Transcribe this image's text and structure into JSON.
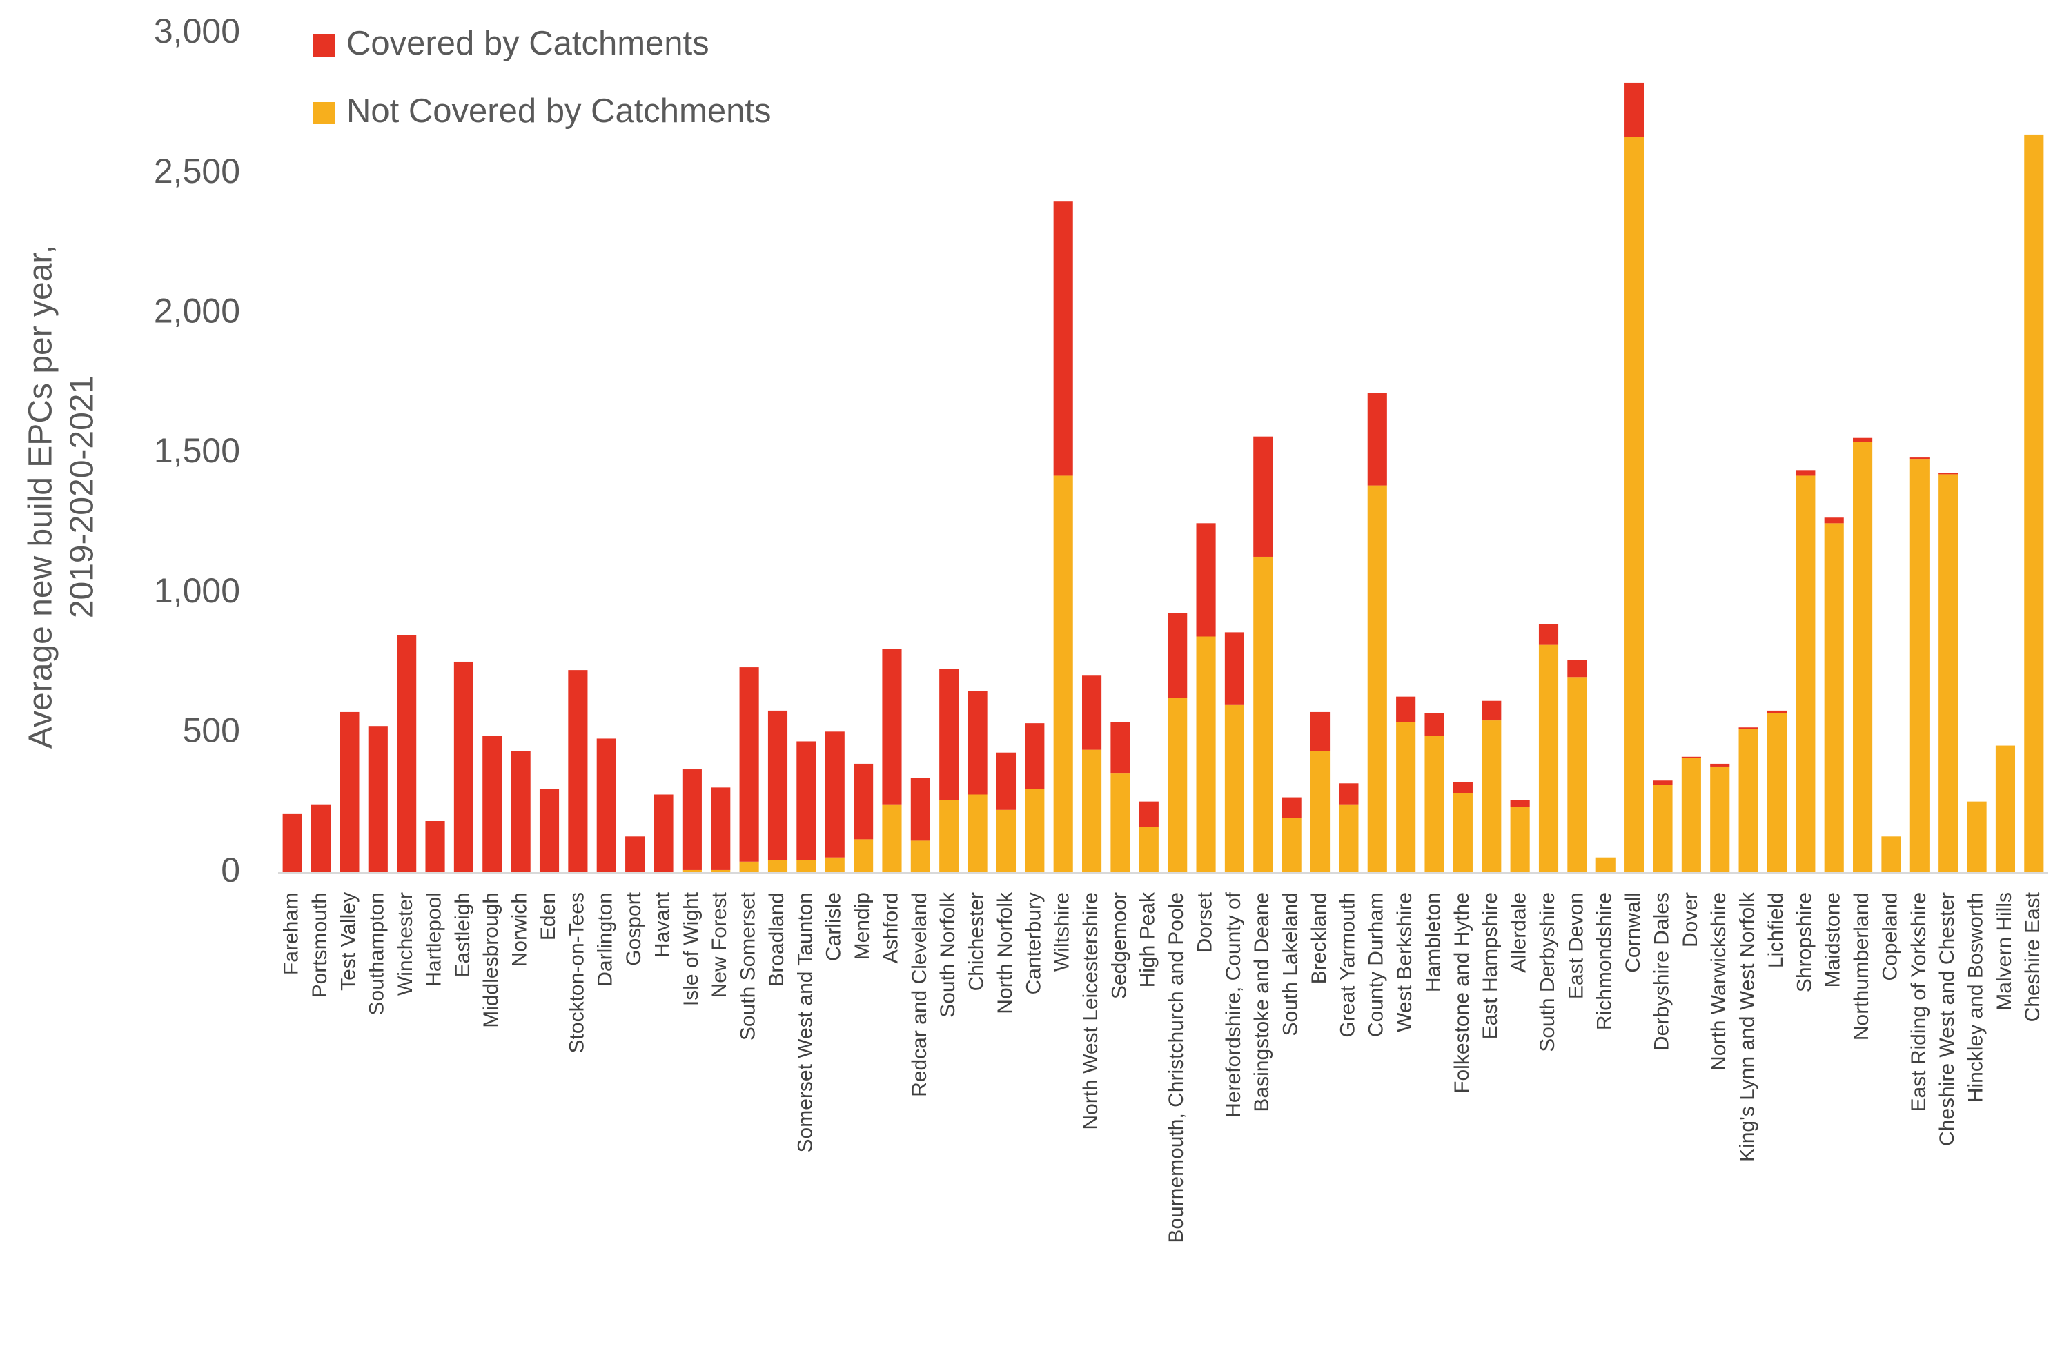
{
  "chart_data": {
    "type": "bar",
    "stacked": true,
    "title": "",
    "ylabel_lines": [
      "Average new build EPCs per year,",
      "2019-2020-2021"
    ],
    "xlabel": "",
    "ylim": [
      0,
      3000
    ],
    "yticks": [
      0,
      500,
      1000,
      1500,
      2000,
      2500,
      3000
    ],
    "ytick_labels": [
      "0",
      "500",
      "1,000",
      "1,500",
      "2,000",
      "2,500",
      "3,000"
    ],
    "grid": false,
    "legend_position": "top-left",
    "categories": [
      "Fareham",
      "Portsmouth",
      "Test Valley",
      "Southampton",
      "Winchester",
      "Hartlepool",
      "Eastleigh",
      "Middlesbrough",
      "Norwich",
      "Eden",
      "Stockton-on-Tees",
      "Darlington",
      "Gosport",
      "Havant",
      "Isle of Wight",
      "New Forest",
      "South Somerset",
      "Broadland",
      "Somerset West and Taunton",
      "Carlisle",
      "Mendip",
      "Ashford",
      "Redcar and Cleveland",
      "South Norfolk",
      "Chichester",
      "North Norfolk",
      "Canterbury",
      "Wiltshire",
      "North West Leicestershire",
      "Sedgemoor",
      "High Peak",
      "Bournemouth, Christchurch and Poole",
      "Dorset",
      "Herefordshire, County of",
      "Basingstoke and Deane",
      "South Lakeland",
      "Breckland",
      "Great Yarmouth",
      "County Durham",
      "West Berkshire",
      "Hambleton",
      "Folkestone and Hythe",
      "East Hampshire",
      "Allerdale",
      "South Derbyshire",
      "East Devon",
      "Richmondshire",
      "Cornwall",
      "Derbyshire Dales",
      "Dover",
      "North Warwickshire",
      "King's Lynn and West Norfolk",
      "Lichfield",
      "Shropshire",
      "Maidstone",
      "Northumberland",
      "Copeland",
      "East Riding of Yorkshire",
      "Cheshire West and Chester",
      "Hinckley and Bosworth",
      "Malvern Hills",
      "Cheshire East"
    ],
    "series": [
      {
        "name": "Not Covered by Catchments",
        "color": "#F7AF1D",
        "values": [
          0,
          0,
          0,
          0,
          0,
          0,
          0,
          0,
          0,
          0,
          0,
          0,
          0,
          0,
          10,
          10,
          40,
          45,
          45,
          55,
          120,
          245,
          115,
          260,
          280,
          225,
          300,
          1420,
          440,
          355,
          165,
          625,
          845,
          600,
          1130,
          195,
          435,
          245,
          1385,
          540,
          490,
          285,
          545,
          235,
          815,
          700,
          55,
          2630,
          315,
          410,
          380,
          515,
          570,
          1420,
          1250,
          1540,
          130,
          1480,
          1425,
          255,
          455,
          2640
        ]
      },
      {
        "name": "Covered by Catchments",
        "color": "#E63323",
        "values": [
          210,
          245,
          575,
          525,
          850,
          185,
          755,
          490,
          435,
          300,
          725,
          480,
          130,
          280,
          360,
          295,
          695,
          535,
          425,
          450,
          270,
          555,
          225,
          470,
          370,
          205,
          235,
          980,
          265,
          185,
          90,
          305,
          405,
          260,
          430,
          75,
          140,
          75,
          330,
          90,
          80,
          40,
          70,
          25,
          75,
          60,
          0,
          195,
          15,
          5,
          10,
          5,
          10,
          20,
          20,
          15,
          0,
          5,
          5,
          0,
          0,
          0
        ]
      }
    ]
  }
}
